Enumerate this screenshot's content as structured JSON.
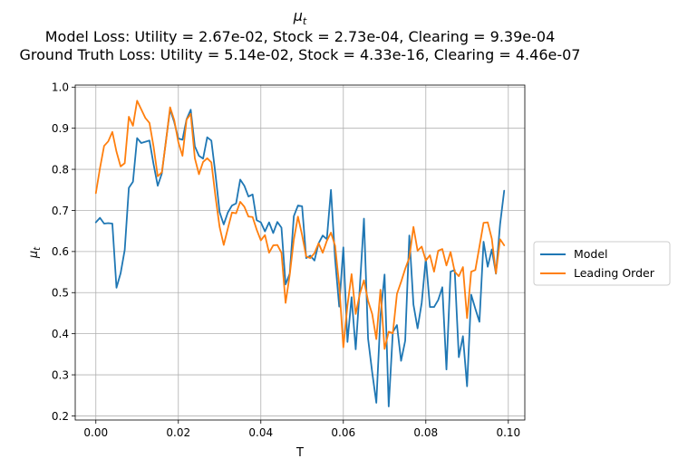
{
  "chart_data": {
    "type": "line",
    "title": {
      "symbol": "μ",
      "subscript": "t",
      "line2": "Model Loss: Utility = 2.67e-02, Stock = 2.73e-04, Clearing = 9.39e-04",
      "line3": "Ground Truth Loss: Utility = 5.14e-02, Stock = 4.33e-16, Clearing = 4.46e-07"
    },
    "xlabel": "T",
    "ylabel": {
      "symbol": "μ",
      "subscript": "t"
    },
    "xlim": [
      -0.005,
      0.104
    ],
    "ylim": [
      0.19,
      1.005
    ],
    "xticks": [
      0.0,
      0.02,
      0.04,
      0.06,
      0.08,
      0.1
    ],
    "xtick_labels": [
      "0.00",
      "0.02",
      "0.04",
      "0.06",
      "0.08",
      "0.10"
    ],
    "yticks": [
      0.2,
      0.3,
      0.4,
      0.5,
      0.6,
      0.7,
      0.8,
      0.9,
      1.0
    ],
    "ytick_labels": [
      "0.2",
      "0.3",
      "0.4",
      "0.5",
      "0.6",
      "0.7",
      "0.8",
      "0.9",
      "1.0"
    ],
    "grid": true,
    "legend_position": "right, outside plot",
    "x": [
      0.0,
      0.001,
      0.002,
      0.003,
      0.004,
      0.005,
      0.006,
      0.007,
      0.008,
      0.009,
      0.01,
      0.011,
      0.012,
      0.013,
      0.014,
      0.015,
      0.016,
      0.017,
      0.018,
      0.019,
      0.02,
      0.021,
      0.022,
      0.023,
      0.024,
      0.025,
      0.026,
      0.027,
      0.028,
      0.029,
      0.03,
      0.031,
      0.032,
      0.033,
      0.034,
      0.035,
      0.036,
      0.037,
      0.038,
      0.039,
      0.04,
      0.041,
      0.042,
      0.043,
      0.044,
      0.045,
      0.046,
      0.047,
      0.048,
      0.049,
      0.05,
      0.051,
      0.052,
      0.053,
      0.054,
      0.055,
      0.056,
      0.057,
      0.058,
      0.059,
      0.06,
      0.061,
      0.062,
      0.063,
      0.064,
      0.065,
      0.066,
      0.067,
      0.068,
      0.069,
      0.07,
      0.071,
      0.072,
      0.073,
      0.074,
      0.075,
      0.076,
      0.077,
      0.078,
      0.079,
      0.08,
      0.081,
      0.082,
      0.083,
      0.084,
      0.085,
      0.086,
      0.087,
      0.088,
      0.089,
      0.09,
      0.091,
      0.092,
      0.093,
      0.094,
      0.095,
      0.096,
      0.097,
      0.098,
      0.099
    ],
    "series": [
      {
        "name": "Model",
        "color": "#1f77b4",
        "values": [
          0.671,
          0.682,
          0.668,
          0.669,
          0.668,
          0.512,
          0.547,
          0.604,
          0.755,
          0.77,
          0.876,
          0.864,
          0.867,
          0.87,
          0.812,
          0.76,
          0.79,
          0.87,
          0.946,
          0.915,
          0.875,
          0.872,
          0.922,
          0.945,
          0.856,
          0.833,
          0.826,
          0.878,
          0.87,
          0.788,
          0.696,
          0.666,
          0.695,
          0.712,
          0.717,
          0.775,
          0.76,
          0.734,
          0.739,
          0.676,
          0.671,
          0.649,
          0.671,
          0.645,
          0.672,
          0.658,
          0.52,
          0.546,
          0.686,
          0.712,
          0.71,
          0.584,
          0.59,
          0.578,
          0.62,
          0.639,
          0.63,
          0.75,
          0.582,
          0.466,
          0.61,
          0.38,
          0.489,
          0.362,
          0.513,
          0.68,
          0.388,
          0.306,
          0.232,
          0.443,
          0.544,
          0.223,
          0.404,
          0.421,
          0.334,
          0.383,
          0.639,
          0.471,
          0.413,
          0.475,
          0.583,
          0.465,
          0.465,
          0.482,
          0.513,
          0.313,
          0.551,
          0.555,
          0.343,
          0.394,
          0.272,
          0.495,
          0.461,
          0.429,
          0.624,
          0.563,
          0.605,
          0.546,
          0.666,
          0.748
        ]
      },
      {
        "name": "Leading Order",
        "color": "#ff7f0e",
        "values": [
          0.742,
          0.803,
          0.857,
          0.868,
          0.891,
          0.843,
          0.807,
          0.815,
          0.928,
          0.906,
          0.967,
          0.946,
          0.925,
          0.913,
          0.855,
          0.783,
          0.793,
          0.868,
          0.951,
          0.92,
          0.866,
          0.833,
          0.921,
          0.935,
          0.827,
          0.788,
          0.818,
          0.827,
          0.817,
          0.734,
          0.66,
          0.616,
          0.656,
          0.695,
          0.693,
          0.721,
          0.709,
          0.685,
          0.684,
          0.653,
          0.627,
          0.64,
          0.597,
          0.615,
          0.616,
          0.597,
          0.475,
          0.543,
          0.629,
          0.685,
          0.64,
          0.588,
          0.584,
          0.596,
          0.62,
          0.597,
          0.626,
          0.646,
          0.614,
          0.518,
          0.367,
          0.469,
          0.545,
          0.448,
          0.497,
          0.53,
          0.48,
          0.448,
          0.387,
          0.507,
          0.363,
          0.405,
          0.401,
          0.497,
          0.526,
          0.558,
          0.585,
          0.66,
          0.602,
          0.612,
          0.578,
          0.591,
          0.551,
          0.602,
          0.606,
          0.566,
          0.599,
          0.551,
          0.54,
          0.562,
          0.438,
          0.551,
          0.555,
          0.612,
          0.67,
          0.671,
          0.631,
          0.547,
          0.63,
          0.615
        ]
      }
    ]
  }
}
